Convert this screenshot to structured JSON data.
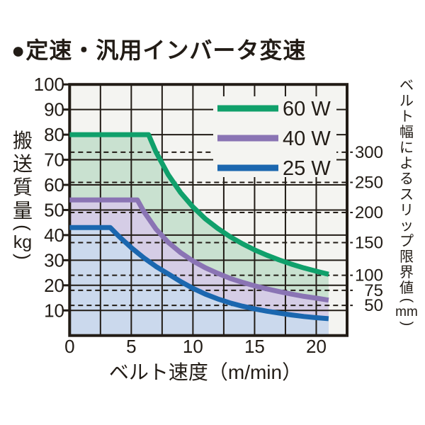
{
  "chart_data": {
    "type": "area",
    "title": "●定速・汎用インバータ変速",
    "colors": {
      "text": "#221c16",
      "grid": "#221c16",
      "plot_background": "#f4f4f1",
      "page_background": "#ffffff"
    },
    "x_axis": {
      "label": "ベルト速度（m/min）",
      "ticks": [
        0,
        5,
        10,
        15,
        20
      ],
      "min": 0,
      "max": 22.5,
      "grid_step": 2.5
    },
    "y_axis": {
      "label_kanji": "搬送質量",
      "label_unit": "kg",
      "ticks": [
        10,
        20,
        30,
        40,
        50,
        60,
        70,
        80,
        90,
        100
      ],
      "min": 0,
      "max": 100,
      "grid_step": 10
    },
    "y2_axis": {
      "label_kanji": "ベルト幅によるスリップ限界値",
      "label_unit": "mm",
      "slip_limits": [
        {
          "width_mm": "300",
          "load_kg": 73
        },
        {
          "width_mm": "250",
          "load_kg": 61
        },
        {
          "width_mm": "200",
          "load_kg": 49
        },
        {
          "width_mm": "150",
          "load_kg": 37
        },
        {
          "width_mm": "100",
          "load_kg": 24
        },
        {
          "width_mm": "75",
          "load_kg": 18
        },
        {
          "width_mm": "50",
          "load_kg": 12
        }
      ]
    },
    "legend": {
      "position": "top-right",
      "items": [
        "60 W",
        "40 W",
        "25 W"
      ]
    },
    "series": [
      {
        "name": "60 W",
        "color": "#10a06b",
        "fill": "#c9e1d0",
        "points": [
          [
            0,
            80
          ],
          [
            6.4,
            80
          ],
          [
            7,
            73.1
          ],
          [
            8,
            64
          ],
          [
            9,
            56.9
          ],
          [
            10,
            51.2
          ],
          [
            11,
            46.5
          ],
          [
            12,
            42.7
          ],
          [
            13,
            39.4
          ],
          [
            14,
            36.6
          ],
          [
            15,
            34.1
          ],
          [
            16,
            32
          ],
          [
            17,
            30.1
          ],
          [
            18,
            28.4
          ],
          [
            19,
            26.9
          ],
          [
            20,
            25.6
          ],
          [
            21,
            24.4
          ]
        ]
      },
      {
        "name": "40 W",
        "color": "#8a74b4",
        "fill": "#d5cde6",
        "points": [
          [
            0,
            54
          ],
          [
            5.5,
            54
          ],
          [
            6,
            49.5
          ],
          [
            7,
            42.4
          ],
          [
            8,
            37.1
          ],
          [
            9,
            33
          ],
          [
            10,
            29.7
          ],
          [
            11,
            27
          ],
          [
            12,
            24.8
          ],
          [
            13,
            22.8
          ],
          [
            14,
            21.2
          ],
          [
            15,
            19.8
          ],
          [
            16,
            18.6
          ],
          [
            17,
            17.5
          ],
          [
            18,
            16.5
          ],
          [
            19,
            15.6
          ],
          [
            20,
            14.9
          ],
          [
            21,
            14.1
          ]
        ]
      },
      {
        "name": "25 W",
        "color": "#1b67af",
        "fill": "#cbd9ed",
        "points": [
          [
            0,
            43
          ],
          [
            3.3,
            43
          ],
          [
            4,
            39.5
          ],
          [
            5,
            35
          ],
          [
            6,
            31
          ],
          [
            7,
            27.5
          ],
          [
            8,
            24.5
          ],
          [
            9,
            21.5
          ],
          [
            10,
            18.8
          ],
          [
            11,
            16.5
          ],
          [
            12,
            14.6
          ],
          [
            13,
            13
          ],
          [
            14,
            11.7
          ],
          [
            15,
            10.6
          ],
          [
            16,
            9.7
          ],
          [
            17,
            8.9
          ],
          [
            18,
            8.2
          ],
          [
            19,
            7.6
          ],
          [
            20,
            7.1
          ],
          [
            21,
            6.7
          ]
        ]
      }
    ]
  }
}
